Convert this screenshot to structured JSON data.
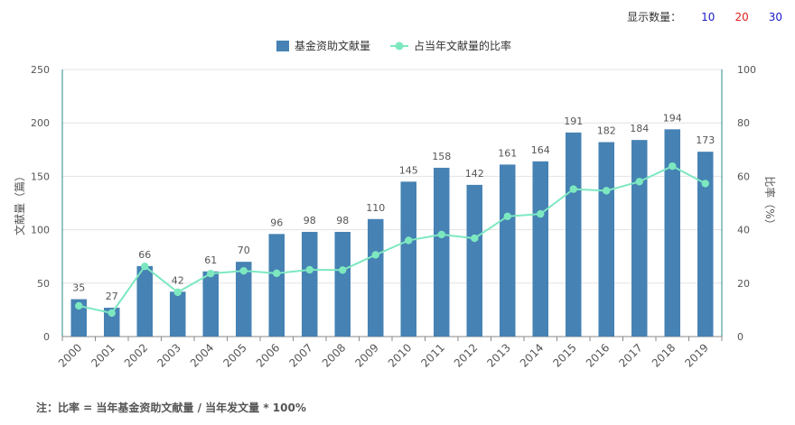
{
  "display": {
    "label": "显示数量：",
    "options": [
      {
        "label": "10",
        "color": "#1a1acc"
      },
      {
        "label": "20",
        "color": "#e02020"
      },
      {
        "label": "30",
        "color": "#1a1acc"
      }
    ]
  },
  "note": "注：比率 = 当年基金资助文献量 / 当年发文量 * 100%",
  "chart_data": {
    "type": "bar",
    "categories": [
      "2000",
      "2001",
      "2002",
      "2003",
      "2004",
      "2005",
      "2006",
      "2007",
      "2008",
      "2009",
      "2010",
      "2011",
      "2012",
      "2013",
      "2014",
      "2015",
      "2016",
      "2017",
      "2018",
      "2019"
    ],
    "series": [
      {
        "name": "基金资助文献量",
        "type": "bar",
        "axis": "left",
        "color": "#4682b4",
        "values": [
          35,
          27,
          66,
          42,
          61,
          70,
          96,
          98,
          98,
          110,
          145,
          158,
          142,
          161,
          164,
          191,
          182,
          184,
          194,
          173
        ]
      },
      {
        "name": "占当年文献量的比率",
        "type": "line",
        "axis": "right",
        "color": "#7de8c0",
        "values": [
          11.5,
          8.8,
          26.3,
          16.6,
          23.6,
          24.6,
          23.7,
          25.0,
          24.9,
          30.6,
          36.0,
          38.2,
          36.8,
          45.0,
          45.9,
          55.2,
          54.6,
          58.0,
          63.8,
          57.3
        ]
      }
    ],
    "ylabel": "文献量（篇）",
    "y2label": "比率（%）",
    "ylim": [
      0,
      250
    ],
    "yticks": [
      "0",
      "50",
      "100",
      "150",
      "200",
      "250"
    ],
    "y2lim": [
      0,
      100
    ],
    "y2ticks": [
      "0",
      "20",
      "40",
      "60",
      "80",
      "100"
    ],
    "grid": true,
    "legend": "top-center"
  }
}
